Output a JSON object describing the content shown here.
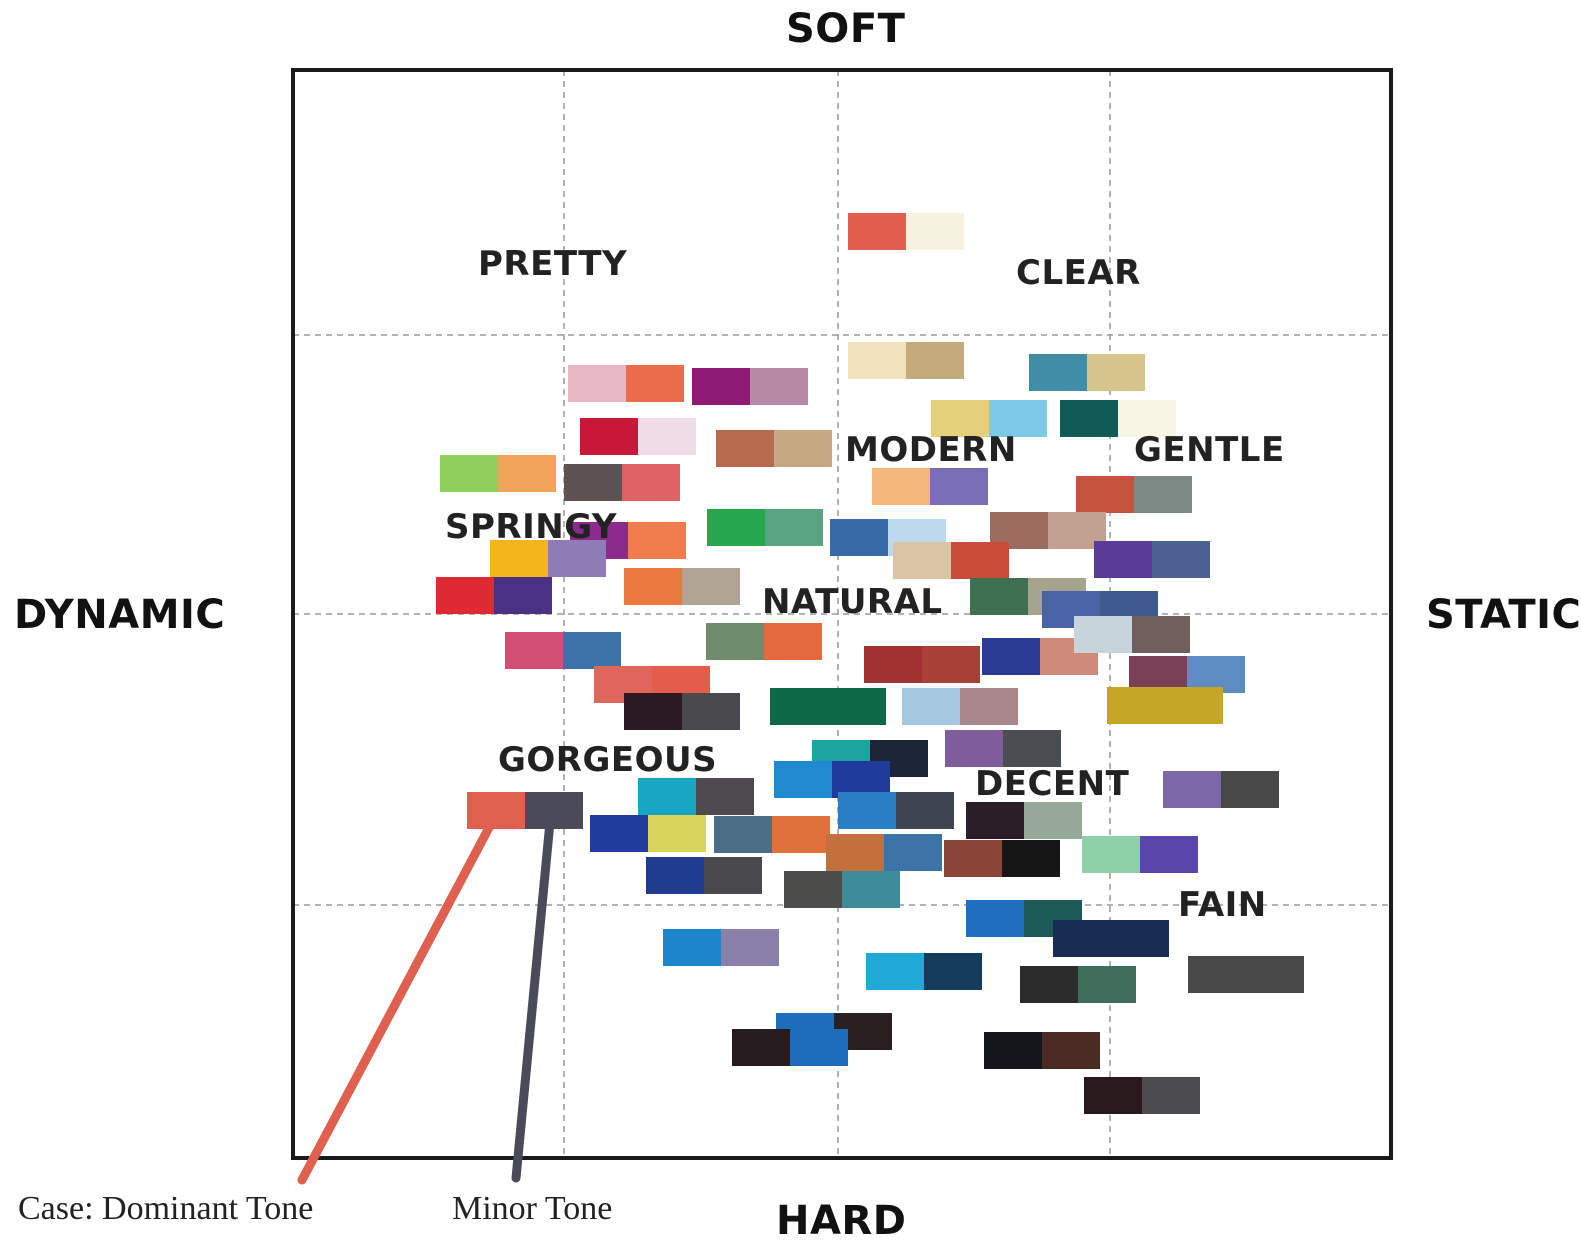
{
  "axes": {
    "top": "SOFT",
    "bottom": "HARD",
    "left": "DYNAMIC",
    "right": "STATIC"
  },
  "regions": {
    "pretty": "PRETTY",
    "clear": "CLEAR",
    "modern": "MODERN",
    "gentle": "GENTLE",
    "springy": "SPRINGY",
    "natural": "NATURAL",
    "gorgeous": "GORGEOUS",
    "decent": "DECENT",
    "fain": "FAIN"
  },
  "legend": {
    "dominant": "Case: Dominant Tone",
    "minor": "Minor Tone",
    "dominant_color": "#e06050",
    "minor_color": "#4a4a58"
  },
  "swatch_pairs": [
    {
      "name": "pair-clear-1",
      "c": [
        "#e35d4f",
        "#f5f2e0"
      ]
    },
    {
      "name": "pair-clear-2",
      "c": [
        "#f2e2bd",
        "#c4aa7c"
      ]
    },
    {
      "name": "pair-gentle-1",
      "c": [
        "#3f8ea5",
        "#d6c48a"
      ]
    },
    {
      "name": "pair-gentle-2",
      "c": [
        "#e5d07a",
        "#7ec8e8"
      ]
    },
    {
      "name": "pair-gentle-3",
      "c": [
        "#115a56",
        "#f7f4e4"
      ]
    },
    {
      "name": "pair-pretty-1",
      "c": [
        "#e6b8c4",
        "#eb6b4d"
      ]
    },
    {
      "name": "pair-pretty-2",
      "c": [
        "#8e1b73",
        "#b889a4"
      ]
    },
    {
      "name": "pair-pretty-3",
      "c": [
        "#c8183a",
        "#f0dce4"
      ]
    },
    {
      "name": "pair-springy-1",
      "c": [
        "#8fcf5e",
        "#f2a45c"
      ]
    },
    {
      "name": "pair-springy-2",
      "c": [
        "#5e5252",
        "#e06264"
      ]
    },
    {
      "name": "pair-modern-1",
      "c": [
        "#b86a4e",
        "#c6a883"
      ]
    },
    {
      "name": "pair-modern-2",
      "c": [
        "#f5b77a",
        "#7a6fb6"
      ]
    },
    {
      "name": "pair-gentle-4",
      "c": [
        "#c4523c",
        "#7c8884"
      ]
    },
    {
      "name": "pair-natural-1",
      "c": [
        "#26a74e",
        "#5aa483"
      ]
    },
    {
      "name": "pair-natural-2",
      "c": [
        "#396aa8",
        "#bcd9ed"
      ]
    },
    {
      "name": "pair-natural-3",
      "c": [
        "#9c6d5e",
        "#c2a092"
      ]
    },
    {
      "name": "pair-springy-3",
      "c": [
        "#8c2a8e",
        "#ee7c4c"
      ]
    },
    {
      "name": "pair-springy-4",
      "c": [
        "#f3b41c",
        "#8f7cb6"
      ]
    },
    {
      "name": "pair-springy-5",
      "c": [
        "#df2a34",
        "#4a3184"
      ]
    },
    {
      "name": "pair-natural-4",
      "c": [
        "#ea783e",
        "#b0a394"
      ]
    },
    {
      "name": "pair-natural-5",
      "c": [
        "#dac4a4",
        "#c84c38"
      ]
    },
    {
      "name": "pair-static-1",
      "c": [
        "#5a3c98",
        "#4c6094"
      ]
    },
    {
      "name": "pair-natural-6",
      "c": [
        "#3d7050",
        "#a5a48e"
      ]
    },
    {
      "name": "pair-static-2",
      "c": [
        "#4a62a6",
        "#3f5a8e"
      ]
    },
    {
      "name": "pair-center-1",
      "c": [
        "#d34e75",
        "#3c72a8"
      ]
    },
    {
      "name": "pair-center-2",
      "c": [
        "#6f8d6c",
        "#e26a3e"
      ]
    },
    {
      "name": "pair-center-3",
      "c": [
        "#a23232",
        "#a84038"
      ]
    },
    {
      "name": "pair-center-4",
      "c": [
        "#2a3c94",
        "#d08a7a"
      ]
    },
    {
      "name": "pair-static-3",
      "c": [
        "#c8d4dc",
        "#6f5e5a"
      ]
    },
    {
      "name": "pair-static-4",
      "c": [
        "#7a4056",
        "#5c8cc0"
      ]
    },
    {
      "name": "pair-gorgeous-1",
      "c": [
        "#e0665c",
        "#e35d4a"
      ]
    },
    {
      "name": "pair-gorgeous-2",
      "c": [
        "#2b1a22",
        "#4a4a4e"
      ]
    },
    {
      "name": "pair-center-5",
      "c": [
        "#0d6848",
        "#0d6848"
      ]
    },
    {
      "name": "pair-center-6",
      "c": [
        "#a4c8e0",
        "#a8888c"
      ]
    },
    {
      "name": "pair-static-5",
      "c": [
        "#c6a626",
        "#c6a626"
      ]
    },
    {
      "name": "pair-decent-1",
      "c": [
        "#1ba4a0",
        "#1c2438"
      ]
    },
    {
      "name": "pair-decent-2",
      "c": [
        "#7e5d9a",
        "#4a4e52"
      ]
    },
    {
      "name": "pair-decent-3",
      "c": [
        "#1f8ad0",
        "#1f3c9c"
      ]
    },
    {
      "name": "pair-decent-4",
      "c": [
        "#19a6c4",
        "#4c4a4c"
      ]
    },
    {
      "name": "pair-decent-5",
      "c": [
        "#2a7ec4",
        "#3e4450"
      ]
    },
    {
      "name": "pair-decent-6",
      "c": [
        "#2c1e28",
        "#96a898"
      ]
    },
    {
      "name": "pair-static-6",
      "c": [
        "#7a68a8",
        "#484848"
      ]
    },
    {
      "name": "pair-gorgeous-legend",
      "c": [
        "#e06050",
        "#4a4a58"
      ]
    },
    {
      "name": "pair-gorgeous-3",
      "c": [
        "#203c9c",
        "#d8d45c"
      ]
    },
    {
      "name": "pair-gorgeous-4",
      "c": [
        "#4a6e86",
        "#e0703c"
      ]
    },
    {
      "name": "pair-gorgeous-5",
      "c": [
        "#c4703c",
        "#3c74a8"
      ]
    },
    {
      "name": "pair-decent-7",
      "c": [
        "#8a4538",
        "#161616"
      ]
    },
    {
      "name": "pair-decent-8",
      "c": [
        "#8ed0a8",
        "#5846aa"
      ]
    },
    {
      "name": "pair-gorgeous-6",
      "c": [
        "#203c90",
        "#4a4a4c"
      ]
    },
    {
      "name": "pair-hard-1",
      "c": [
        "#4c4c4a",
        "#3c8c9c"
      ]
    },
    {
      "name": "pair-fain-1",
      "c": [
        "#1f6ec0",
        "#1c5a58"
      ]
    },
    {
      "name": "pair-fain-2",
      "c": [
        "#182c54",
        "#182c54"
      ]
    },
    {
      "name": "pair-hard-2",
      "c": [
        "#1c86cc",
        "#8880a8"
      ]
    },
    {
      "name": "pair-hard-3",
      "c": [
        "#20a8d8",
        "#163c5c"
      ]
    },
    {
      "name": "pair-hard-4",
      "c": [
        "#2c2c2c",
        "#416e5c"
      ]
    },
    {
      "name": "pair-hard-5",
      "c": [
        "#484848",
        "#484848"
      ]
    },
    {
      "name": "pair-hard-6",
      "c": [
        "#1c6ebc",
        "#2a2022"
      ]
    },
    {
      "name": "pair-hard-7",
      "c": [
        "#261c20",
        "#1c6cbc"
      ]
    },
    {
      "name": "pair-hard-8",
      "c": [
        "#14161c",
        "#4c2a24"
      ]
    },
    {
      "name": "pair-hard-9",
      "c": [
        "#28191c",
        "#4c4c4e"
      ]
    }
  ]
}
